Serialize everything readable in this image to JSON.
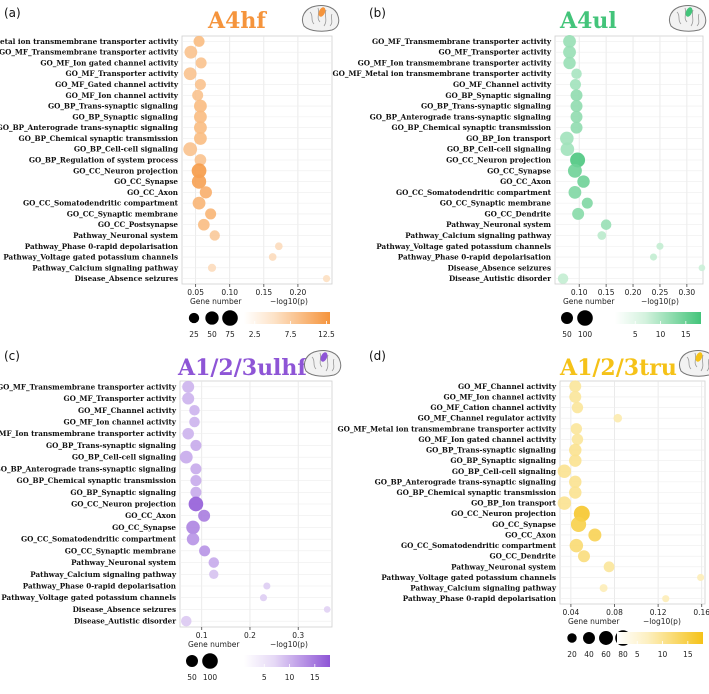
{
  "figure_labels": {
    "x_axis_label": "−log10(p)",
    "size_legend_title": "Gene number"
  },
  "chart_data": [
    {
      "panel": "(a)",
      "title": "A4hf",
      "color": "#f5943c",
      "light": "#fde3c8",
      "type": "scatter",
      "xlim": [
        0.03,
        0.25
      ],
      "xticks": [
        "0.05",
        "0.10",
        "0.15",
        "0.20"
      ],
      "xtick_values": [
        0.05,
        0.1,
        0.15,
        0.2
      ],
      "size_legend": [
        "25",
        "50",
        "75"
      ],
      "size_legend_values": [
        25,
        50,
        75
      ],
      "color_legend": [
        "2.5",
        "7.5",
        "12.5"
      ],
      "color_range": [
        1,
        13
      ],
      "points": [
        {
          "term": "GO_MF_Metal ion transmembrane transporter activity",
          "x": 0.055,
          "size": 30,
          "neglogp": 7
        },
        {
          "term": "GO_MF_Transmembrane transporter activity",
          "x": 0.043,
          "size": 45,
          "neglogp": 6
        },
        {
          "term": "GO_MF_Ion gated channel activity",
          "x": 0.058,
          "size": 30,
          "neglogp": 6
        },
        {
          "term": "GO_MF_Transporter activity",
          "x": 0.042,
          "size": 45,
          "neglogp": 6
        },
        {
          "term": "GO_MF_Gated channel activity",
          "x": 0.057,
          "size": 30,
          "neglogp": 6
        },
        {
          "term": "GO_MF_Ion channel activity",
          "x": 0.053,
          "size": 30,
          "neglogp": 6
        },
        {
          "term": "GO_BP_Trans-synaptic signaling",
          "x": 0.057,
          "size": 45,
          "neglogp": 7
        },
        {
          "term": "GO_BP_Synaptic signaling",
          "x": 0.057,
          "size": 45,
          "neglogp": 7
        },
        {
          "term": "GO_BP_Anterograde trans-synaptic signaling",
          "x": 0.057,
          "size": 45,
          "neglogp": 7
        },
        {
          "term": "GO_BP_Chemical synaptic transmission",
          "x": 0.057,
          "size": 45,
          "neglogp": 7
        },
        {
          "term": "GO_BP_Cell-cell signaling",
          "x": 0.042,
          "size": 55,
          "neglogp": 6
        },
        {
          "term": "GO_BP_Regulation of system process",
          "x": 0.057,
          "size": 35,
          "neglogp": 6
        },
        {
          "term": "GO_CC_Neuron projection",
          "x": 0.055,
          "size": 65,
          "neglogp": 12
        },
        {
          "term": "GO_CC_Synapse",
          "x": 0.055,
          "size": 60,
          "neglogp": 11
        },
        {
          "term": "GO_CC_Axon",
          "x": 0.065,
          "size": 40,
          "neglogp": 9
        },
        {
          "term": "GO_CC_Somatodendritic compartment",
          "x": 0.055,
          "size": 45,
          "neglogp": 8
        },
        {
          "term": "GO_CC_Synaptic membrane",
          "x": 0.072,
          "size": 30,
          "neglogp": 8
        },
        {
          "term": "GO_CC_Postsynapse",
          "x": 0.062,
          "size": 35,
          "neglogp": 7
        },
        {
          "term": "Pathway_Neuronal system",
          "x": 0.078,
          "size": 25,
          "neglogp": 5
        },
        {
          "term": "Pathway_Phase 0-rapid depolarisation",
          "x": 0.172,
          "size": 10,
          "neglogp": 2
        },
        {
          "term": "Pathway_Voltage gated potassium channels",
          "x": 0.163,
          "size": 10,
          "neglogp": 2
        },
        {
          "term": "Pathway_Calcium signaling pathway",
          "x": 0.074,
          "size": 12,
          "neglogp": 2
        },
        {
          "term": "Disease_Absence seizures",
          "x": 0.242,
          "size": 8,
          "neglogp": 1.5
        }
      ]
    },
    {
      "panel": "(b)",
      "title": "A4ul",
      "color": "#43c47a",
      "light": "#d4f2de",
      "type": "scatter",
      "xlim": [
        0.055,
        0.33
      ],
      "xticks": [
        "0.10",
        "0.15",
        "0.20",
        "0.25",
        "0.30"
      ],
      "xtick_values": [
        0.1,
        0.15,
        0.2,
        0.25,
        0.3
      ],
      "size_legend": [
        "50",
        "100"
      ],
      "size_legend_values": [
        50,
        100
      ],
      "color_legend": [
        "5",
        "10",
        "15"
      ],
      "color_range": [
        1,
        18
      ],
      "points": [
        {
          "term": "GO_MF_Transmembrane transporter activity",
          "x": 0.082,
          "size": 60,
          "neglogp": 8
        },
        {
          "term": "GO_MF_Transporter activity",
          "x": 0.082,
          "size": 60,
          "neglogp": 8
        },
        {
          "term": "GO_MF_Ion transmembrane transporter activity",
          "x": 0.082,
          "size": 55,
          "neglogp": 8
        },
        {
          "term": "GO_MF_Metal ion transmembrane transporter activity",
          "x": 0.095,
          "size": 35,
          "neglogp": 6
        },
        {
          "term": "GO_MF_Channel activity",
          "x": 0.093,
          "size": 40,
          "neglogp": 7
        },
        {
          "term": "GO_BP_Synaptic signaling",
          "x": 0.095,
          "size": 50,
          "neglogp": 9
        },
        {
          "term": "GO_BP_Trans-synaptic signaling",
          "x": 0.095,
          "size": 50,
          "neglogp": 9
        },
        {
          "term": "GO_BP_Anterograde trans-synaptic signaling",
          "x": 0.095,
          "size": 50,
          "neglogp": 9
        },
        {
          "term": "GO_BP_Chemical synaptic transmission",
          "x": 0.095,
          "size": 50,
          "neglogp": 9
        },
        {
          "term": "GO_BP_Ion transport",
          "x": 0.077,
          "size": 70,
          "neglogp": 7
        },
        {
          "term": "GO_BP_Cell-cell signaling",
          "x": 0.078,
          "size": 70,
          "neglogp": 7
        },
        {
          "term": "GO_CC_Neuron projection",
          "x": 0.097,
          "size": 90,
          "neglogp": 17
        },
        {
          "term": "GO_CC_Synapse",
          "x": 0.092,
          "size": 75,
          "neglogp": 13
        },
        {
          "term": "GO_CC_Axon",
          "x": 0.108,
          "size": 55,
          "neglogp": 13
        },
        {
          "term": "GO_CC_Somatodendritic compartment",
          "x": 0.092,
          "size": 60,
          "neglogp": 11
        },
        {
          "term": "GO_CC_Synaptic membrane",
          "x": 0.115,
          "size": 40,
          "neglogp": 11
        },
        {
          "term": "GO_CC_Dendrite",
          "x": 0.098,
          "size": 50,
          "neglogp": 10
        },
        {
          "term": "Pathway_Neuronal system",
          "x": 0.15,
          "size": 35,
          "neglogp": 8
        },
        {
          "term": "Pathway_Calcium signaling pathway",
          "x": 0.142,
          "size": 20,
          "neglogp": 4
        },
        {
          "term": "Pathway_Voltage gated potassium channels",
          "x": 0.25,
          "size": 10,
          "neglogp": 3
        },
        {
          "term": "Pathway_Phase 0-rapid depolarisation",
          "x": 0.238,
          "size": 10,
          "neglogp": 3
        },
        {
          "term": "Disease_Absence seizures",
          "x": 0.328,
          "size": 8,
          "neglogp": 2
        },
        {
          "term": "Disease_Autistic disorder",
          "x": 0.07,
          "size": 35,
          "neglogp": 3
        }
      ]
    },
    {
      "panel": "(c)",
      "title": "A1/2/3ulhf",
      "color": "#8e55d6",
      "light": "#e6d9f6",
      "type": "scatter",
      "xlim": [
        0.055,
        0.37
      ],
      "xticks": [
        "0.1",
        "0.2",
        "0.3"
      ],
      "xtick_values": [
        0.1,
        0.2,
        0.3
      ],
      "size_legend": [
        "50",
        "100"
      ],
      "size_legend_values": [
        50,
        100
      ],
      "color_legend": [
        "5",
        "10",
        "15"
      ],
      "color_range": [
        1,
        18
      ],
      "points": [
        {
          "term": "GO_MF_Transmembrane transporter activity",
          "x": 0.072,
          "size": 50,
          "neglogp": 6
        },
        {
          "term": "GO_MF_Transporter activity",
          "x": 0.072,
          "size": 50,
          "neglogp": 6
        },
        {
          "term": "GO_MF_Channel activity",
          "x": 0.085,
          "size": 35,
          "neglogp": 6
        },
        {
          "term": "GO_MF_Ion channel activity",
          "x": 0.085,
          "size": 35,
          "neglogp": 6
        },
        {
          "term": "GO_MF_Ion transmembrane transporter activity",
          "x": 0.072,
          "size": 45,
          "neglogp": 6
        },
        {
          "term": "GO_BP_Trans-synaptic signaling",
          "x": 0.088,
          "size": 40,
          "neglogp": 7
        },
        {
          "term": "GO_BP_Cell-cell signaling",
          "x": 0.068,
          "size": 60,
          "neglogp": 7
        },
        {
          "term": "GO_BP_Anterograde trans-synaptic signaling",
          "x": 0.088,
          "size": 40,
          "neglogp": 7
        },
        {
          "term": "GO_BP_Chemical synaptic transmission",
          "x": 0.088,
          "size": 40,
          "neglogp": 7
        },
        {
          "term": "GO_BP_Synaptic signaling",
          "x": 0.088,
          "size": 40,
          "neglogp": 7
        },
        {
          "term": "GO_CC_Neuron projection",
          "x": 0.088,
          "size": 85,
          "neglogp": 17
        },
        {
          "term": "GO_CC_Axon",
          "x": 0.105,
          "size": 50,
          "neglogp": 13
        },
        {
          "term": "GO_CC_Synapse",
          "x": 0.082,
          "size": 70,
          "neglogp": 12
        },
        {
          "term": "GO_CC_Somatodendritic compartment",
          "x": 0.082,
          "size": 55,
          "neglogp": 10
        },
        {
          "term": "GO_CC_Synaptic membrane",
          "x": 0.106,
          "size": 40,
          "neglogp": 10
        },
        {
          "term": "Pathway_Neuronal system",
          "x": 0.125,
          "size": 35,
          "neglogp": 7
        },
        {
          "term": "Pathway_Calcium signaling pathway",
          "x": 0.125,
          "size": 25,
          "neglogp": 4
        },
        {
          "term": "Pathway_Phase 0-rapid depolarisation",
          "x": 0.235,
          "size": 10,
          "neglogp": 2.5
        },
        {
          "term": "Pathway_Voltage gated potassium channels",
          "x": 0.228,
          "size": 10,
          "neglogp": 2.5
        },
        {
          "term": "Disease_Absence seizures",
          "x": 0.36,
          "size": 8,
          "neglogp": 2
        },
        {
          "term": "Disease_Autistic disorder",
          "x": 0.068,
          "size": 35,
          "neglogp": 3
        }
      ]
    },
    {
      "panel": "(d)",
      "title": "A1/2/3tru",
      "color": "#f5c218",
      "light": "#fdf0c2",
      "type": "scatter",
      "xlim": [
        0.03,
        0.163
      ],
      "xticks": [
        "0.04",
        "0.08",
        "0.12",
        "0.16"
      ],
      "xtick_values": [
        0.04,
        0.08,
        0.12,
        0.16
      ],
      "size_legend": [
        "20",
        "40",
        "60",
        "80"
      ],
      "size_legend_values": [
        20,
        40,
        60,
        80
      ],
      "color_legend": [
        "5",
        "10",
        "15"
      ],
      "color_range": [
        1,
        18
      ],
      "points": [
        {
          "term": "GO_MF_Channel activity",
          "x": 0.044,
          "size": 40,
          "neglogp": 5
        },
        {
          "term": "GO_MF_Ion channel activity",
          "x": 0.044,
          "size": 40,
          "neglogp": 5
        },
        {
          "term": "GO_MF_Cation channel activity",
          "x": 0.046,
          "size": 35,
          "neglogp": 5
        },
        {
          "term": "GO_MF_Channel regulator activity",
          "x": 0.083,
          "size": 15,
          "neglogp": 3
        },
        {
          "term": "GO_MF_Metal ion transmembrane transporter activity",
          "x": 0.045,
          "size": 35,
          "neglogp": 5
        },
        {
          "term": "GO_MF_Ion gated channel activity",
          "x": 0.046,
          "size": 35,
          "neglogp": 5
        },
        {
          "term": "GO_BP_Trans-synaptic signaling",
          "x": 0.044,
          "size": 45,
          "neglogp": 6
        },
        {
          "term": "GO_BP_Synaptic signaling",
          "x": 0.044,
          "size": 45,
          "neglogp": 6
        },
        {
          "term": "GO_BP_Cell-cell signaling",
          "x": 0.034,
          "size": 55,
          "neglogp": 6
        },
        {
          "term": "GO_BP_Anterograde trans-synaptic signaling",
          "x": 0.044,
          "size": 45,
          "neglogp": 6
        },
        {
          "term": "GO_BP_Chemical synaptic transmission",
          "x": 0.044,
          "size": 45,
          "neglogp": 6
        },
        {
          "term": "GO_BP_Ion transport",
          "x": 0.034,
          "size": 55,
          "neglogp": 6
        },
        {
          "term": "GO_CC_Neuron projection",
          "x": 0.05,
          "size": 85,
          "neglogp": 16
        },
        {
          "term": "GO_CC_Synapse",
          "x": 0.047,
          "size": 75,
          "neglogp": 13
        },
        {
          "term": "GO_CC_Axon",
          "x": 0.062,
          "size": 50,
          "neglogp": 12
        },
        {
          "term": "GO_CC_Somatodendritic compartment",
          "x": 0.045,
          "size": 55,
          "neglogp": 9
        },
        {
          "term": "GO_CC_Dendrite",
          "x": 0.052,
          "size": 40,
          "neglogp": 8
        },
        {
          "term": "Pathway_Neuronal system",
          "x": 0.075,
          "size": 30,
          "neglogp": 5
        },
        {
          "term": "Pathway_Voltage gated potassium channels",
          "x": 0.159,
          "size": 8,
          "neglogp": 2
        },
        {
          "term": "Pathway_Calcium signaling pathway",
          "x": 0.07,
          "size": 12,
          "neglogp": 2
        },
        {
          "term": "Pathway_Phase 0-rapid depolarisation",
          "x": 0.127,
          "size": 8,
          "neglogp": 2
        }
      ]
    }
  ]
}
